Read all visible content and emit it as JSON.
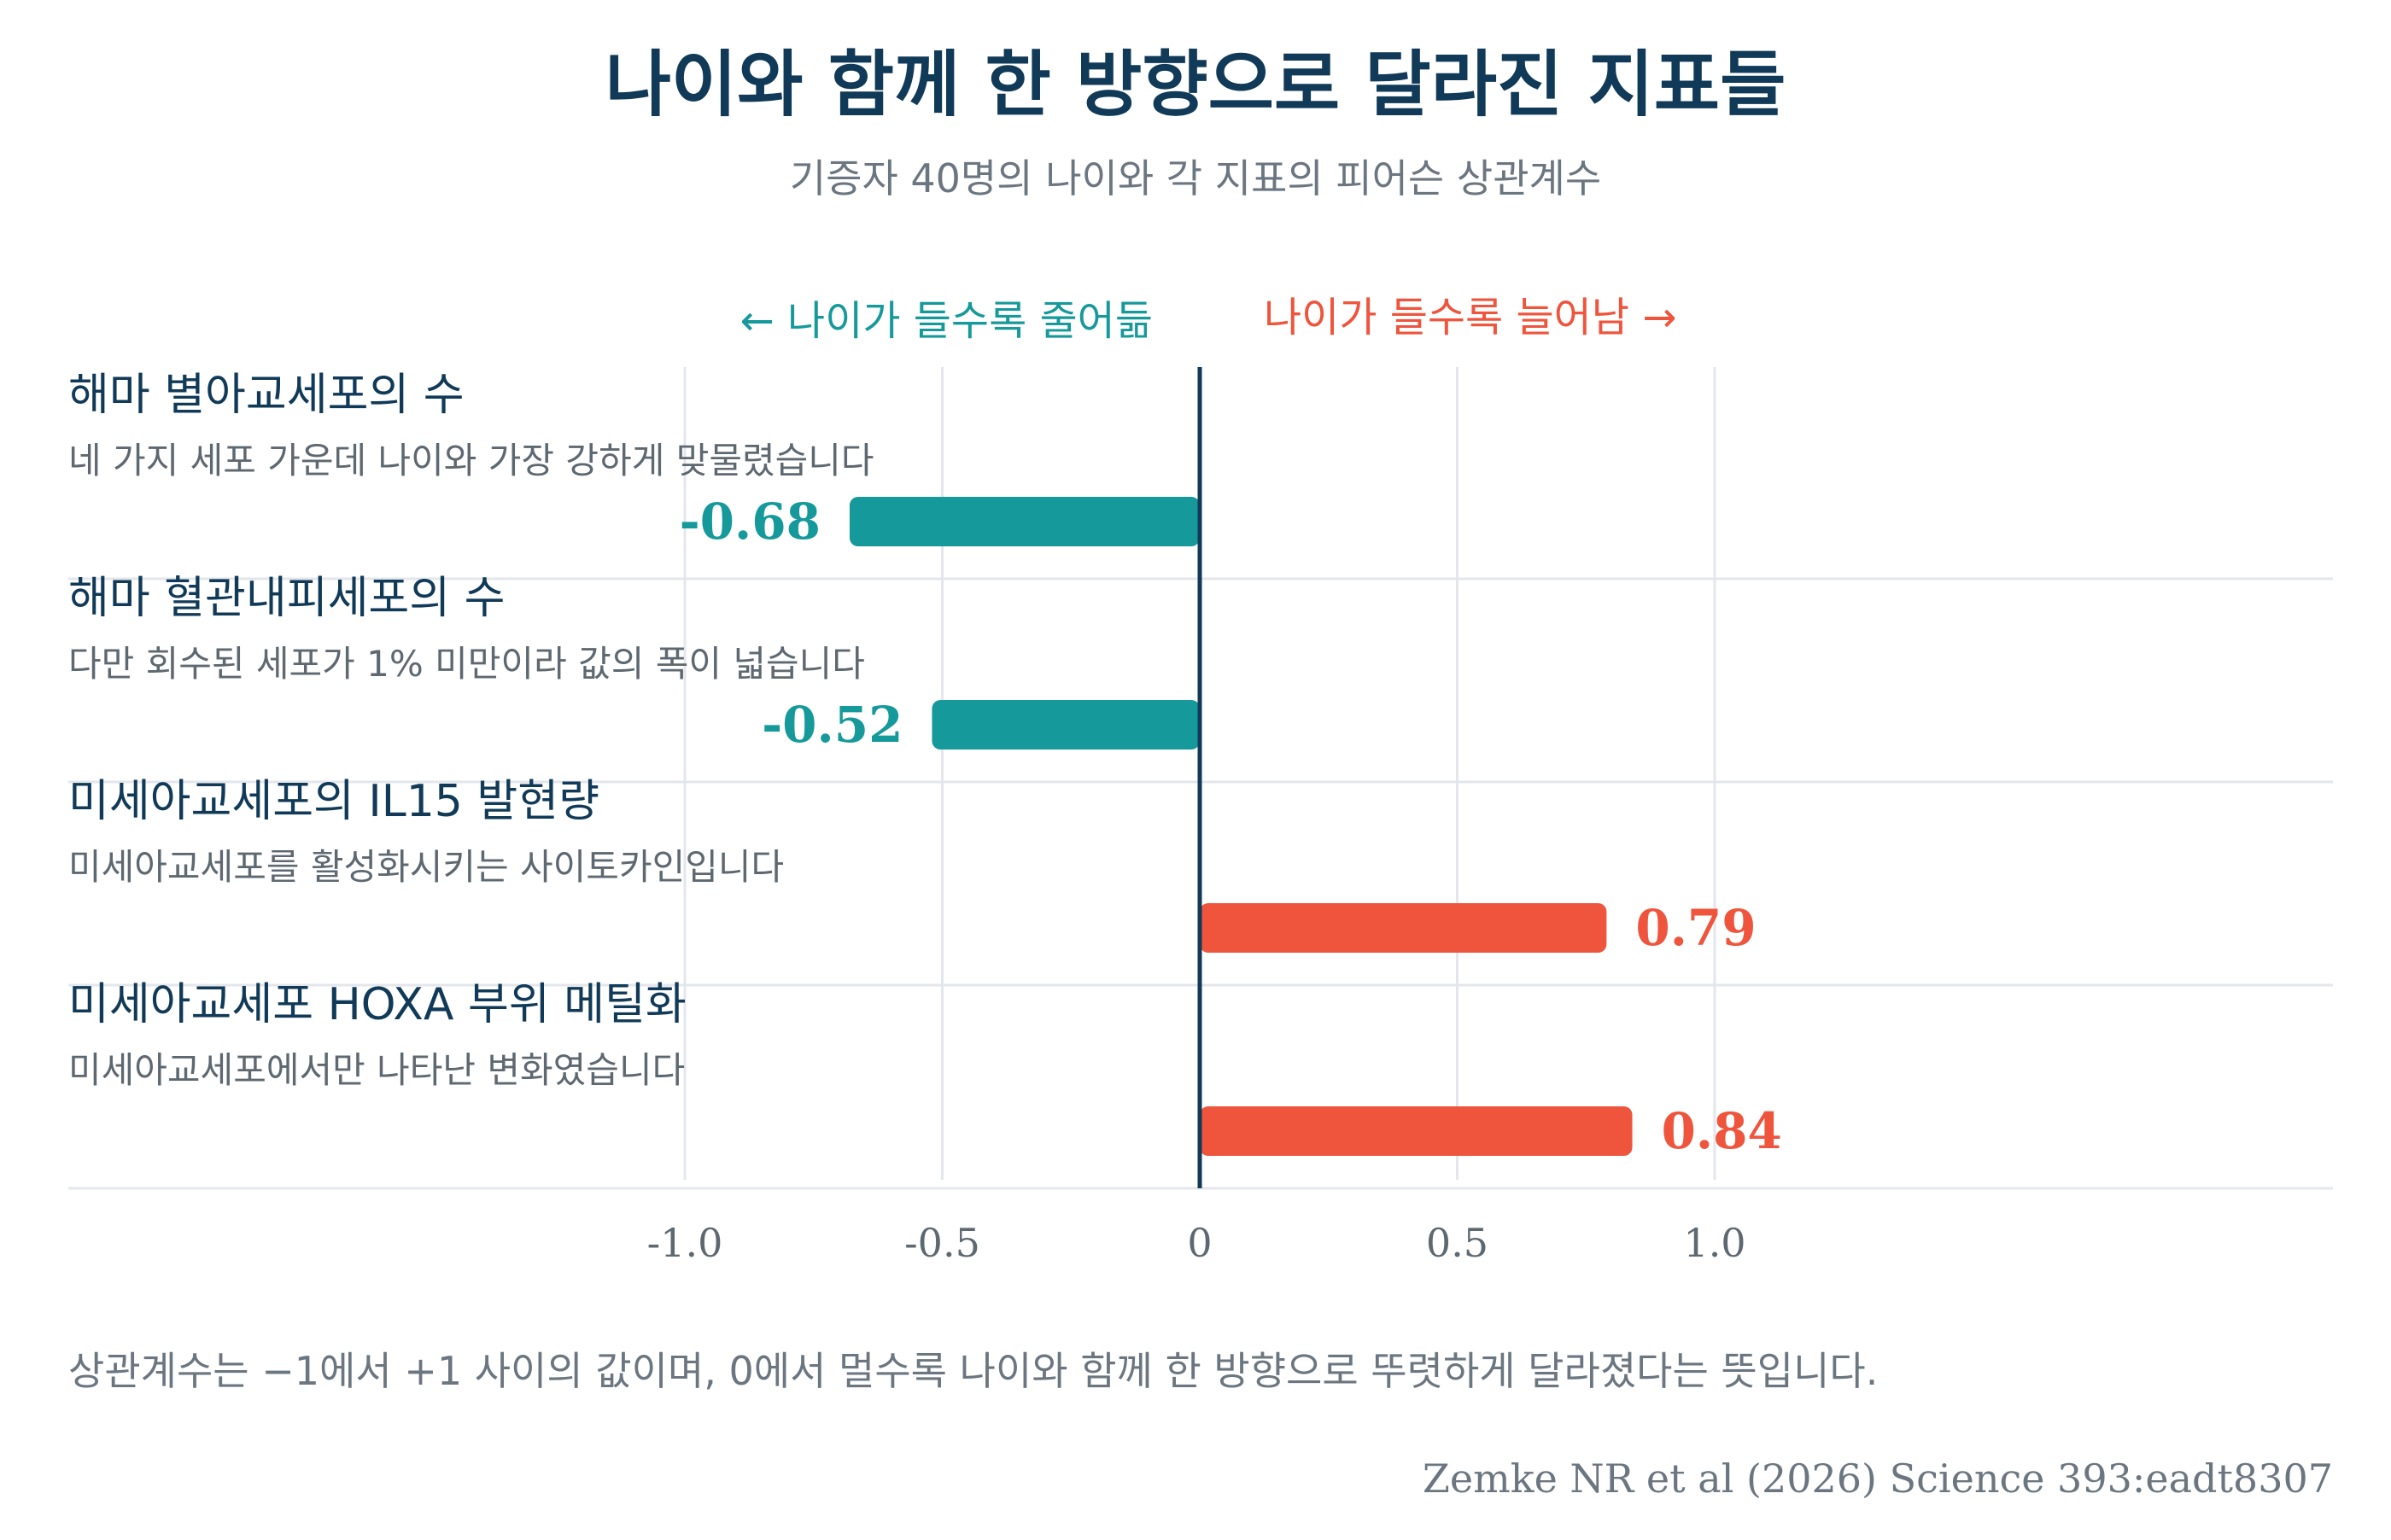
{
  "title": "나이와 함께 한 방향으로 달라진 지표들",
  "subtitle": "기증자 40명의 나이와 각 지표의 피어슨 상관계수",
  "direction_labels": {
    "negative": "← 나이가 들수록 줄어듦",
    "positive": "나이가 들수록 늘어남 →"
  },
  "footnote": "상관계수는 −1에서 +1 사이의 값이며, 0에서 멀수록 나이와 함께 한 방향으로 뚜렷하게 달라졌다는 뜻입니다.",
  "source": "Zemke NR et al (2026) Science 393:eadt8307",
  "colors": {
    "negative": "#16999a",
    "positive": "#ef543c",
    "title": "#103a57",
    "zero_line": "#103a57",
    "grid": "#e3e7ec"
  },
  "chart_data": {
    "type": "bar",
    "orientation": "horizontal",
    "xlim": [
      -1.0,
      1.0
    ],
    "xticks": [
      -1.0,
      -0.5,
      0,
      0.5,
      1.0
    ],
    "xtick_labels": [
      "-1.0",
      "-0.5",
      "0",
      "0.5",
      "1.0"
    ],
    "grid": true,
    "categories": [
      {
        "label": "해마 별아교세포의 수",
        "note": "네 가지 세포 가운데 나이와 가장 강하게 맞물렸습니다",
        "value": -0.68,
        "value_label": "-0.68"
      },
      {
        "label": "해마 혈관내피세포의 수",
        "note": "다만 회수된 세포가 1% 미만이라 값의 폭이 넓습니다",
        "value": -0.52,
        "value_label": "-0.52"
      },
      {
        "label": "미세아교세포의 IL15 발현량",
        "note": "미세아교세포를 활성화시키는 사이토카인입니다",
        "value": 0.79,
        "value_label": "0.79"
      },
      {
        "label": "미세아교세포 HOXA 부위 메틸화",
        "note": "미세아교세포에서만 나타난 변화였습니다",
        "value": 0.84,
        "value_label": "0.84"
      }
    ]
  }
}
